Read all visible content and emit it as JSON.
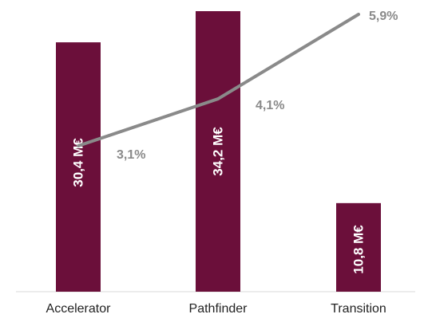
{
  "chart_data": {
    "type": "bar",
    "categories": [
      "Accelerator",
      "Pathfinder",
      "Transition"
    ],
    "bar_series": {
      "values": [
        30.4,
        34.2,
        10.8
      ],
      "labels": [
        "30,4 M€",
        "34,2 M€",
        "10,8 M€"
      ],
      "unit": "M€",
      "color": "#6b0f3a"
    },
    "line_series": {
      "values": [
        3.1,
        4.1,
        5.9
      ],
      "labels": [
        "3,1%",
        "4,1%",
        "5,9%"
      ],
      "unit": "%",
      "color": "#8a8a8a"
    },
    "xlabel": "",
    "ylabel": "",
    "grid": false,
    "legend": "none"
  }
}
